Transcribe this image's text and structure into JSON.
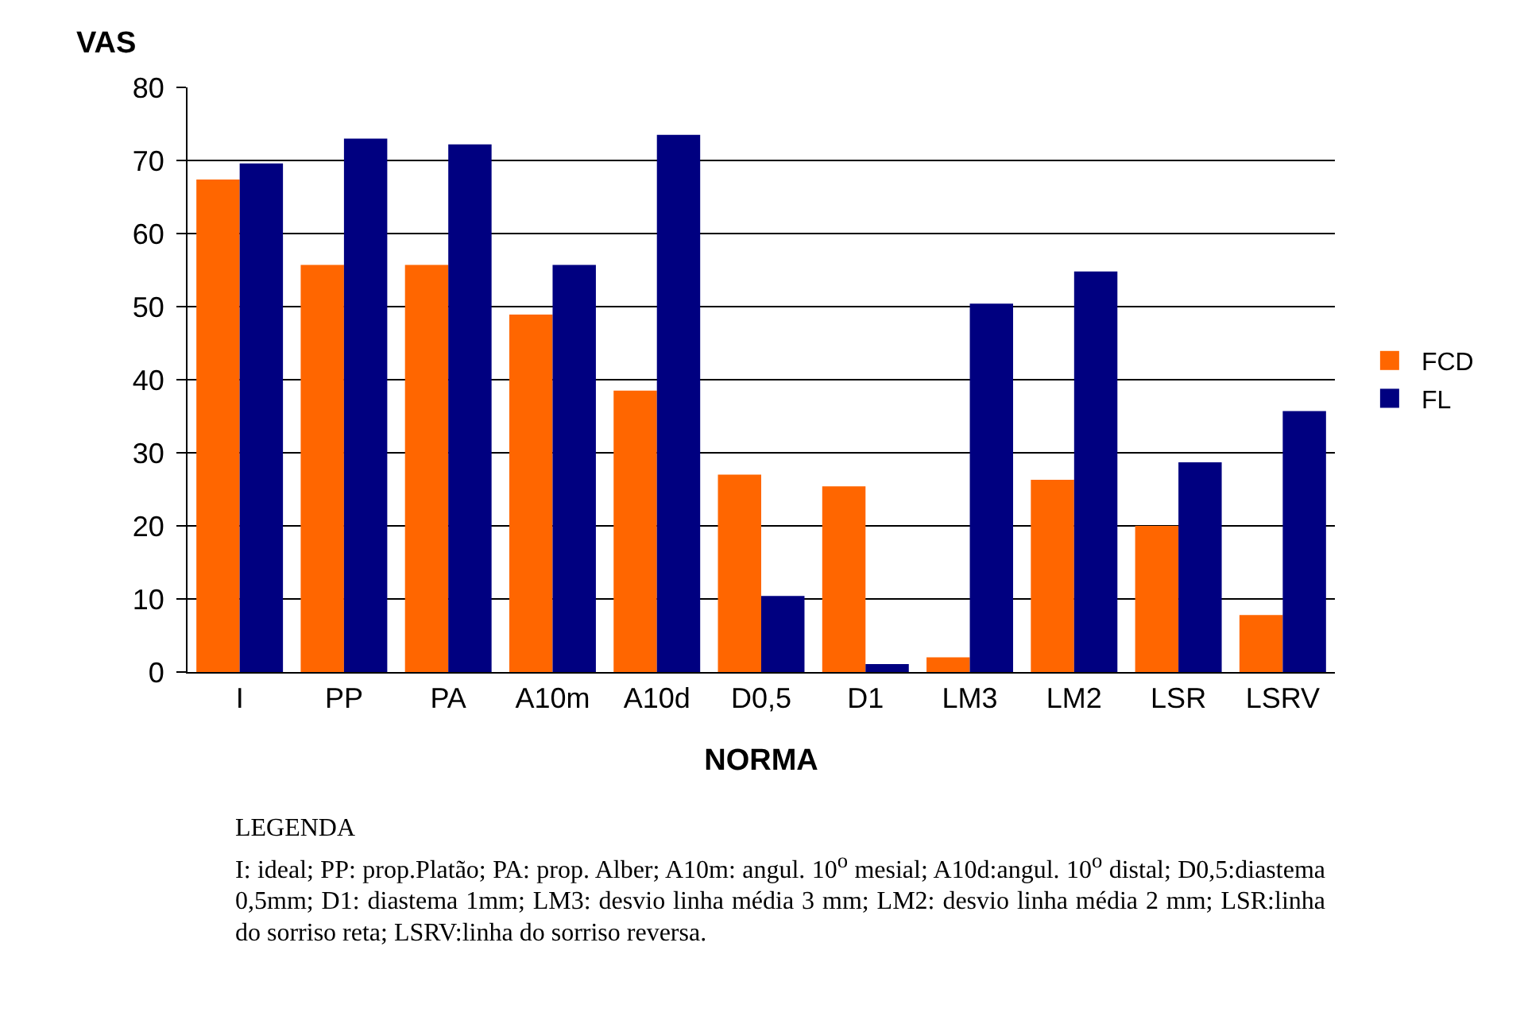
{
  "chart_data": {
    "type": "bar",
    "xlabel": "NORMA",
    "ylabel": "VAS",
    "categories": [
      "I",
      "PP",
      "PA",
      "A10m",
      "A10d",
      "D0,5",
      "D1",
      "LM3",
      "LM2",
      "LSR",
      "LSRV"
    ],
    "series": [
      {
        "name": "FCD",
        "color": "#ff6600",
        "values": [
          67.4,
          55.7,
          55.7,
          48.9,
          38.5,
          27.0,
          25.4,
          2.0,
          26.3,
          20.0,
          7.8
        ]
      },
      {
        "name": "FL",
        "color": "#000080",
        "values": [
          69.6,
          73.0,
          72.2,
          55.7,
          73.5,
          10.4,
          1.1,
          50.4,
          54.8,
          28.7,
          35.7
        ]
      }
    ],
    "ylim": [
      0,
      80
    ],
    "yticks": [
      0,
      10,
      20,
      30,
      40,
      50,
      60,
      70,
      80
    ],
    "grid": "y",
    "legend": "right",
    "annotations": [
      "LEGENDA",
      "I: ideal; PP: prop.Platão; PA: prop. Alber; A10m: angul. 10$^{o}$ mesial; A10d:angul. 10$^{o}$ distal; D0,5:diastema 0,5mm; D1: diastema 1mm; LM3: desvio linha média 3 mm; LM2: desvio linha média 2 mm; LSR:linha do sorriso reta; LSRV:linha do sorriso reversa."
    ]
  }
}
